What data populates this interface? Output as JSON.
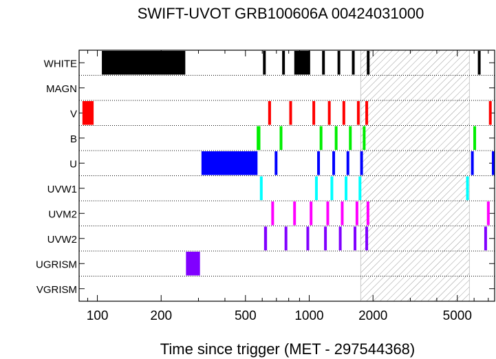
{
  "chart_data": {
    "type": "timeline",
    "title": "SWIFT-UVOT GRB100606A 00424031000",
    "xlabel": "Time since trigger (MET - 297544368)",
    "ylabel": "",
    "xscale": "log",
    "xlim": [
      82,
      7500
    ],
    "xticks": [
      100,
      200,
      500,
      1000,
      2000,
      5000
    ],
    "xtick_labels": [
      "100",
      "200",
      "500",
      "1000",
      "2000",
      "5000"
    ],
    "grid": "dotted horizontal row separators",
    "categories": [
      "WHITE",
      "MAGN",
      "V",
      "B",
      "U",
      "UVW1",
      "UVM2",
      "UVW2",
      "UGRISM",
      "VGRISM"
    ],
    "shaded_interval": [
      1750,
      5700
    ],
    "series": [
      {
        "filter": "WHITE",
        "color": "#000000",
        "intervals": [
          [
            105,
            260
          ],
          [
            605,
            622
          ],
          [
            745,
            760
          ],
          [
            850,
            1010
          ],
          [
            1150,
            1170
          ],
          [
            1360,
            1380
          ],
          [
            1590,
            1610
          ],
          [
            1870,
            1890
          ],
          [
            6250,
            6350
          ]
        ]
      },
      {
        "filter": "MAGN",
        "color": "#000000",
        "intervals": []
      },
      {
        "filter": "V",
        "color": "#ff0000",
        "intervals": [
          [
            85,
            96
          ],
          [
            640,
            660
          ],
          [
            805,
            825
          ],
          [
            1035,
            1055
          ],
          [
            1225,
            1245
          ],
          [
            1435,
            1455
          ],
          [
            1680,
            1700
          ],
          [
            1840,
            1860
          ],
          [
            7050,
            7250
          ]
        ]
      },
      {
        "filter": "B",
        "color": "#00ee00",
        "intervals": [
          [
            565,
            588
          ],
          [
            725,
            742
          ],
          [
            1120,
            1140
          ],
          [
            1320,
            1340
          ],
          [
            1540,
            1560
          ],
          [
            1790,
            1810
          ],
          [
            5950,
            6100
          ]
        ]
      },
      {
        "filter": "U",
        "color": "#0000ff",
        "intervals": [
          [
            310,
            570
          ],
          [
            687,
            705
          ],
          [
            1090,
            1110
          ],
          [
            1285,
            1305
          ],
          [
            1500,
            1520
          ],
          [
            1740,
            1760
          ],
          [
            5800,
            5950
          ],
          [
            7450,
            7550
          ]
        ]
      },
      {
        "filter": "UVW1",
        "color": "#00ffff",
        "intervals": [
          [
            585,
            602
          ],
          [
            1065,
            1085
          ],
          [
            1260,
            1280
          ],
          [
            1470,
            1490
          ],
          [
            1710,
            1730
          ],
          [
            5500,
            5650
          ]
        ]
      },
      {
        "filter": "UVM2",
        "color": "#ff00ff",
        "intervals": [
          [
            662,
            680
          ],
          [
            840,
            860
          ],
          [
            1005,
            1025
          ],
          [
            1205,
            1225
          ],
          [
            1410,
            1430
          ],
          [
            1655,
            1675
          ],
          [
            1865,
            1885
          ],
          [
            6900,
            7100
          ]
        ]
      },
      {
        "filter": "UVW2",
        "color": "#8000ff",
        "intervals": [
          [
            612,
            632
          ],
          [
            765,
            785
          ],
          [
            970,
            990
          ],
          [
            1175,
            1195
          ],
          [
            1380,
            1400
          ],
          [
            1620,
            1640
          ],
          [
            1840,
            1860
          ],
          [
            6700,
            6900
          ]
        ]
      },
      {
        "filter": "UGRISM",
        "color": "#8000ff",
        "intervals": [
          [
            262,
            305
          ]
        ]
      },
      {
        "filter": "VGRISM",
        "color": "#000000",
        "intervals": []
      }
    ]
  }
}
